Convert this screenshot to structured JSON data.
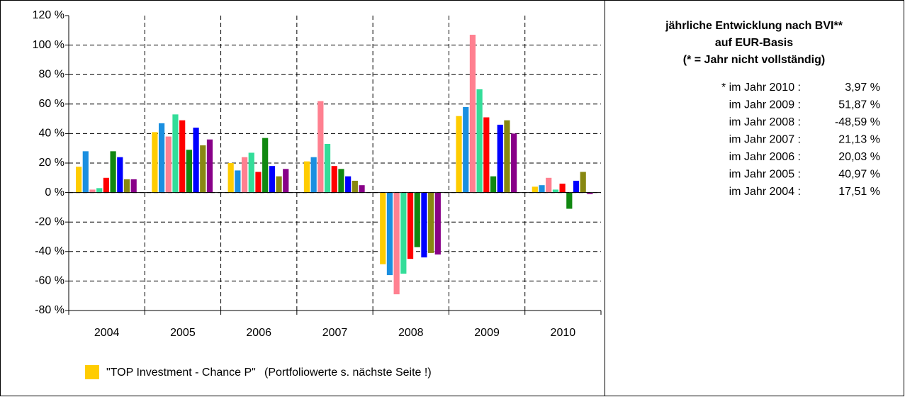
{
  "chart_data": {
    "type": "bar",
    "categories": [
      "2004",
      "2005",
      "2006",
      "2007",
      "2008",
      "2009",
      "2010"
    ],
    "series": [
      {
        "name": "\"TOP Investment - Chance P\"",
        "color": "#ffcc00",
        "values": [
          17.51,
          40.97,
          20.03,
          21.13,
          -48.59,
          51.87,
          3.97
        ]
      },
      {
        "color": "#1a8fe0",
        "values": [
          28,
          47,
          15,
          24,
          -56,
          58,
          5
        ]
      },
      {
        "color": "#ff8090",
        "values": [
          2,
          38,
          24,
          62,
          -69,
          107,
          10
        ]
      },
      {
        "color": "#33dd99",
        "values": [
          3,
          53,
          27,
          33,
          -55,
          70,
          2
        ]
      },
      {
        "color": "#ff0000",
        "values": [
          10,
          49,
          14,
          18,
          -45,
          51,
          6
        ]
      },
      {
        "color": "#118811",
        "values": [
          28,
          29,
          37,
          16,
          -37,
          11,
          -11
        ]
      },
      {
        "color": "#0000ff",
        "values": [
          24,
          44,
          18,
          11,
          -44,
          46,
          8
        ]
      },
      {
        "color": "#888811",
        "values": [
          9,
          32,
          11,
          8,
          -41,
          49,
          14
        ]
      },
      {
        "color": "#880088",
        "values": [
          9,
          36,
          16,
          5,
          -42,
          40,
          -1
        ]
      }
    ],
    "legend_note": "(Portfoliowerte s. nächste Seite !)",
    "ylim": [
      -80,
      120
    ],
    "yticks": [
      {
        "value": -80,
        "label": "-80 %"
      },
      {
        "value": -60,
        "label": "-60 %"
      },
      {
        "value": -40,
        "label": "-40 %"
      },
      {
        "value": -20,
        "label": "-20 %"
      },
      {
        "value": 0,
        "label": "0 %"
      },
      {
        "value": 20,
        "label": "20 %"
      },
      {
        "value": 40,
        "label": "40 %"
      },
      {
        "value": 60,
        "label": "60 %"
      },
      {
        "value": 80,
        "label": "80 %"
      },
      {
        "value": 100,
        "label": "100 %"
      },
      {
        "value": 120,
        "label": "120 %"
      }
    ],
    "grid": true,
    "side_panel": {
      "title": [
        "jährliche Entwicklung nach BVI**",
        "auf EUR-Basis",
        "(* = Jahr nicht vollständig)"
      ],
      "rows": [
        {
          "label": "* im Jahr 2010 :",
          "value": "3,97 %"
        },
        {
          "label": "im Jahr 2009 :",
          "value": "51,87 %"
        },
        {
          "label": "im Jahr 2008 :",
          "value": "-48,59 %"
        },
        {
          "label": "im Jahr 2007 :",
          "value": "21,13 %"
        },
        {
          "label": "im Jahr 2006 :",
          "value": "20,03 %"
        },
        {
          "label": "im Jahr 2005 :",
          "value": "40,97 %"
        },
        {
          "label": "im Jahr 2004 :",
          "value": "17,51 %"
        }
      ]
    }
  }
}
